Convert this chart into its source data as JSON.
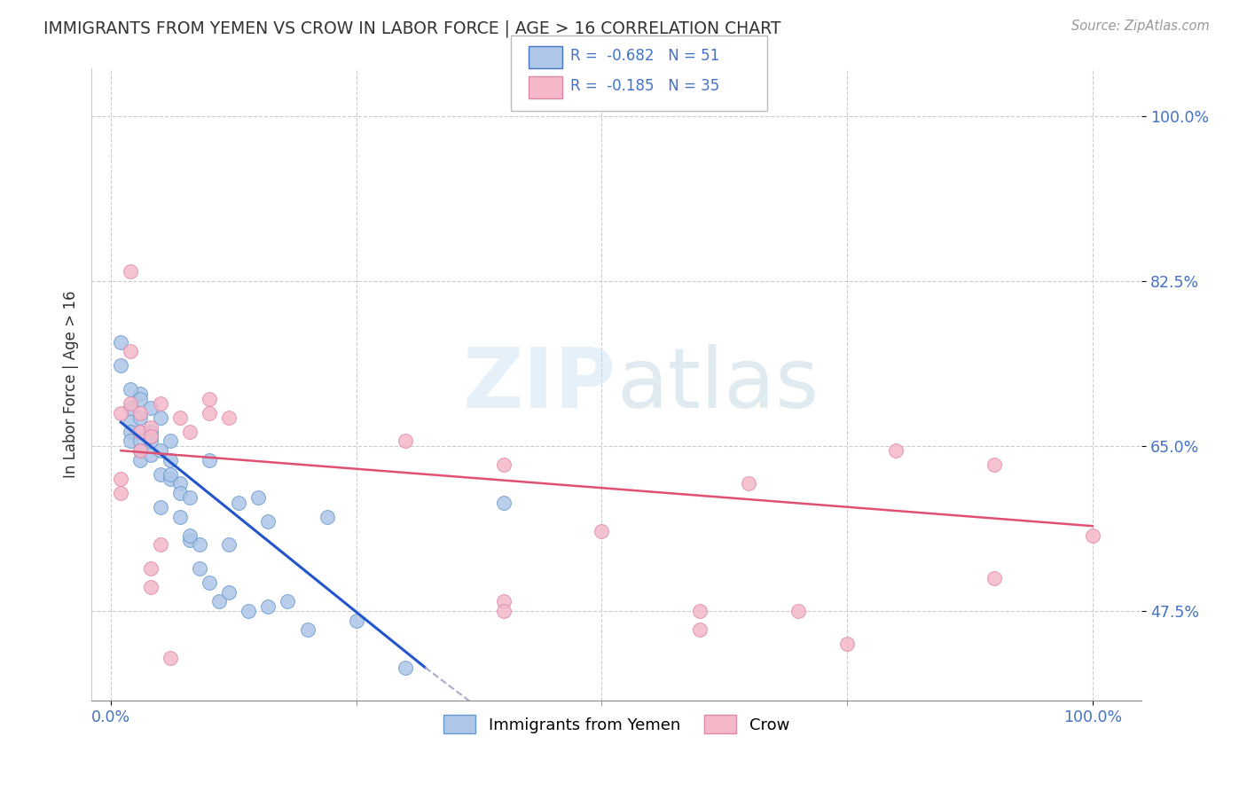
{
  "title": "IMMIGRANTS FROM YEMEN VS CROW IN LABOR FORCE | AGE > 16 CORRELATION CHART",
  "source": "Source: ZipAtlas.com",
  "ylabel": "In Labor Force | Age > 16",
  "y_tick_labels": [
    "47.5%",
    "65.0%",
    "82.5%",
    "100.0%"
  ],
  "y_tick_positions": [
    47.5,
    65.0,
    82.5,
    100.0
  ],
  "legend_r_n": [
    {
      "R": "-0.682",
      "N": "51"
    },
    {
      "R": "-0.185",
      "N": "35"
    }
  ],
  "watermark": "ZIPatlas",
  "blue_scatter": [
    [
      0.1,
      73.5
    ],
    [
      0.2,
      69.0
    ],
    [
      0.2,
      67.5
    ],
    [
      0.2,
      66.5
    ],
    [
      0.2,
      65.5
    ],
    [
      0.3,
      70.5
    ],
    [
      0.3,
      68.0
    ],
    [
      0.3,
      66.5
    ],
    [
      0.3,
      65.5
    ],
    [
      0.3,
      64.5
    ],
    [
      0.3,
      63.5
    ],
    [
      0.4,
      66.5
    ],
    [
      0.4,
      65.5
    ],
    [
      0.4,
      64.0
    ],
    [
      0.5,
      68.0
    ],
    [
      0.5,
      62.0
    ],
    [
      0.5,
      58.5
    ],
    [
      0.6,
      65.5
    ],
    [
      0.6,
      61.5
    ],
    [
      0.7,
      61.0
    ],
    [
      0.7,
      57.5
    ],
    [
      0.8,
      55.0
    ],
    [
      0.9,
      54.5
    ],
    [
      1.0,
      63.5
    ],
    [
      1.1,
      48.5
    ],
    [
      1.2,
      54.5
    ],
    [
      1.3,
      59.0
    ],
    [
      1.5,
      59.5
    ],
    [
      1.6,
      57.0
    ],
    [
      1.6,
      48.0
    ],
    [
      1.8,
      48.5
    ],
    [
      2.2,
      57.5
    ],
    [
      2.5,
      46.5
    ],
    [
      3.0,
      41.5
    ],
    [
      4.0,
      59.0
    ],
    [
      0.1,
      76.0
    ],
    [
      0.2,
      71.0
    ],
    [
      0.3,
      70.0
    ],
    [
      0.4,
      69.0
    ],
    [
      0.4,
      66.0
    ],
    [
      0.5,
      64.5
    ],
    [
      0.6,
      63.5
    ],
    [
      0.6,
      62.0
    ],
    [
      0.7,
      60.0
    ],
    [
      0.8,
      59.5
    ],
    [
      0.8,
      55.5
    ],
    [
      0.9,
      52.0
    ],
    [
      1.0,
      50.5
    ],
    [
      1.2,
      49.5
    ],
    [
      1.4,
      47.5
    ],
    [
      2.0,
      45.5
    ]
  ],
  "pink_scatter": [
    [
      0.1,
      68.5
    ],
    [
      0.1,
      61.5
    ],
    [
      0.1,
      60.0
    ],
    [
      0.2,
      83.5
    ],
    [
      0.2,
      75.0
    ],
    [
      0.2,
      69.5
    ],
    [
      0.3,
      68.5
    ],
    [
      0.3,
      66.5
    ],
    [
      0.3,
      64.5
    ],
    [
      0.4,
      67.0
    ],
    [
      0.4,
      66.0
    ],
    [
      0.4,
      52.0
    ],
    [
      0.4,
      50.0
    ],
    [
      0.5,
      69.5
    ],
    [
      0.5,
      54.5
    ],
    [
      0.6,
      42.5
    ],
    [
      0.7,
      68.0
    ],
    [
      0.8,
      66.5
    ],
    [
      1.0,
      70.0
    ],
    [
      1.0,
      68.5
    ],
    [
      1.2,
      68.0
    ],
    [
      3.0,
      65.5
    ],
    [
      4.0,
      63.0
    ],
    [
      4.0,
      48.5
    ],
    [
      4.0,
      47.5
    ],
    [
      5.0,
      56.0
    ],
    [
      6.0,
      47.5
    ],
    [
      6.0,
      45.5
    ],
    [
      6.5,
      61.0
    ],
    [
      7.0,
      47.5
    ],
    [
      7.5,
      44.0
    ],
    [
      8.0,
      64.5
    ],
    [
      9.0,
      63.0
    ],
    [
      9.0,
      51.0
    ],
    [
      10.0,
      55.5
    ]
  ],
  "blue_line": [
    [
      0.1,
      67.5
    ],
    [
      3.2,
      41.5
    ]
  ],
  "blue_line_ext": [
    [
      3.2,
      41.5
    ],
    [
      6.5,
      15.5
    ]
  ],
  "pink_line": [
    [
      0.1,
      64.5
    ],
    [
      10.0,
      56.5
    ]
  ],
  "background_color": "#ffffff",
  "grid_color": "#cccccc",
  "title_color": "#333333",
  "xlim": [
    -0.2,
    10.5
  ],
  "ylim": [
    38.0,
    105.0
  ],
  "x_tick_positions": [
    0.0,
    10.0
  ],
  "x_tick_labels": [
    "0.0%",
    "100.0%"
  ]
}
